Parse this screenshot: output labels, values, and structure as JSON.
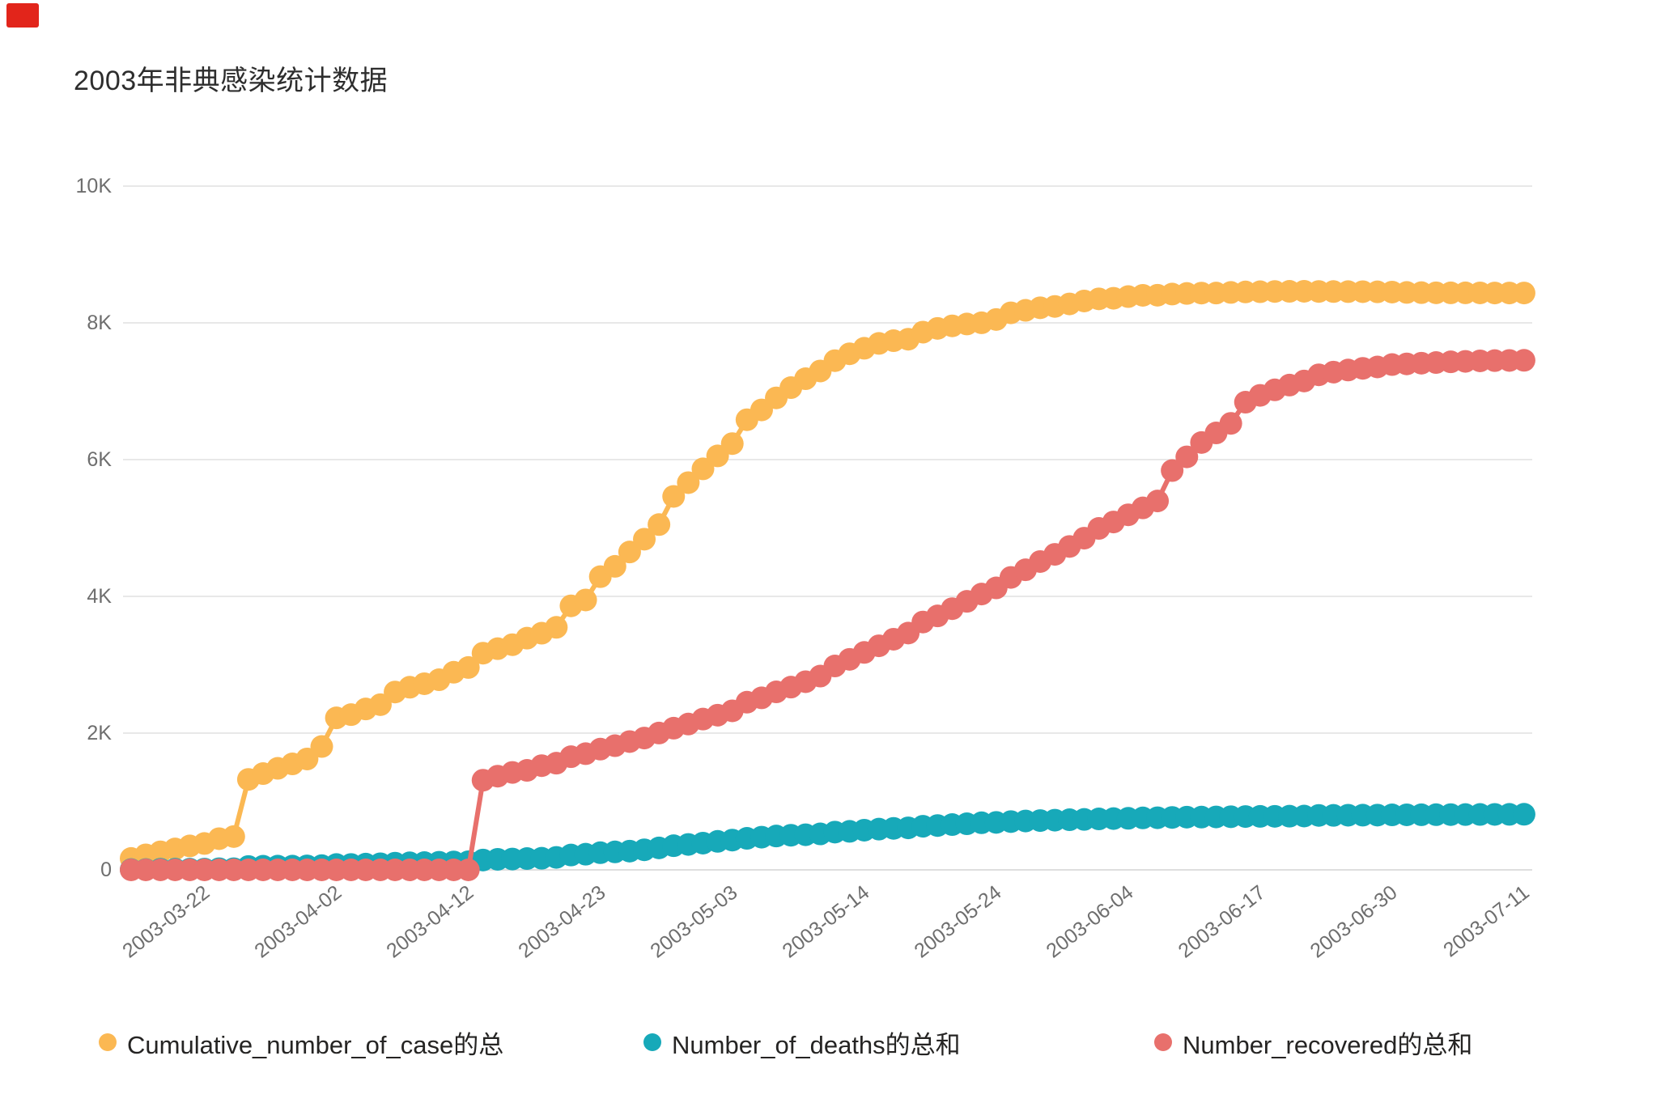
{
  "title": "2003年非典感染统计数据",
  "corner_mark_color": "#e2251b",
  "chart_data": {
    "type": "line",
    "title": "2003年非典感染统计数据",
    "xlabel": "",
    "ylabel": "",
    "ylim": [
      0,
      10000
    ],
    "grid": "horizontal",
    "legend_position": "bottom",
    "y_ticks": {
      "values": [
        0,
        2000,
        4000,
        6000,
        8000,
        10000
      ],
      "labels": [
        "0",
        "2K",
        "4K",
        "6K",
        "8K",
        "10K"
      ]
    },
    "x_tick_indices": [
      5,
      14,
      23,
      32,
      41,
      50,
      59,
      68,
      77,
      86,
      95
    ],
    "x_tick_labels": [
      "2003-03-22",
      "2003-04-02",
      "2003-04-12",
      "2003-04-23",
      "2003-05-03",
      "2003-05-14",
      "2003-05-24",
      "2003-06-04",
      "2003-06-17",
      "2003-06-30",
      "2003-07-11"
    ],
    "x": [
      "2003-03-17",
      "2003-03-18",
      "2003-03-19",
      "2003-03-20",
      "2003-03-21",
      "2003-03-22",
      "2003-03-24",
      "2003-03-25",
      "2003-03-26",
      "2003-03-27",
      "2003-03-28",
      "2003-03-29",
      "2003-03-31",
      "2003-04-01",
      "2003-04-02",
      "2003-04-03",
      "2003-04-04",
      "2003-04-05",
      "2003-04-07",
      "2003-04-08",
      "2003-04-09",
      "2003-04-10",
      "2003-04-11",
      "2003-04-12",
      "2003-04-14",
      "2003-04-15",
      "2003-04-16",
      "2003-04-17",
      "2003-04-18",
      "2003-04-19",
      "2003-04-21",
      "2003-04-22",
      "2003-04-23",
      "2003-04-24",
      "2003-04-25",
      "2003-04-26",
      "2003-04-28",
      "2003-04-29",
      "2003-04-30",
      "2003-05-01",
      "2003-05-02",
      "2003-05-03",
      "2003-05-05",
      "2003-05-06",
      "2003-05-07",
      "2003-05-08",
      "2003-05-09",
      "2003-05-10",
      "2003-05-12",
      "2003-05-13",
      "2003-05-14",
      "2003-05-15",
      "2003-05-16",
      "2003-05-17",
      "2003-05-19",
      "2003-05-20",
      "2003-05-21",
      "2003-05-22",
      "2003-05-23",
      "2003-05-24",
      "2003-05-26",
      "2003-05-27",
      "2003-05-28",
      "2003-05-29",
      "2003-05-30",
      "2003-05-31",
      "2003-06-02",
      "2003-06-03",
      "2003-06-04",
      "2003-06-05",
      "2003-06-06",
      "2003-06-09",
      "2003-06-10",
      "2003-06-11",
      "2003-06-12",
      "2003-06-13",
      "2003-06-16",
      "2003-06-17",
      "2003-06-18",
      "2003-06-19",
      "2003-06-20",
      "2003-06-23",
      "2003-06-24",
      "2003-06-25",
      "2003-06-26",
      "2003-06-27",
      "2003-06-30",
      "2003-07-01",
      "2003-07-02",
      "2003-07-03",
      "2003-07-04",
      "2003-07-07",
      "2003-07-08",
      "2003-07-09",
      "2003-07-10",
      "2003-07-11"
    ],
    "series": [
      {
        "label": "Cumulative_number_of_case的总",
        "color": "#FBB853",
        "values": [
          167,
          219,
          264,
          306,
          350,
          386,
          456,
          487,
          1323,
          1408,
          1485,
          1550,
          1622,
          1804,
          2223,
          2270,
          2353,
          2416,
          2601,
          2671,
          2722,
          2781,
          2890,
          2960,
          3169,
          3235,
          3293,
          3389,
          3461,
          3547,
          3861,
          3947,
          4288,
          4439,
          4649,
          4836,
          5050,
          5462,
          5663,
          5865,
          6054,
          6234,
          6583,
          6727,
          6903,
          7053,
          7183,
          7296,
          7447,
          7548,
          7628,
          7699,
          7739,
          7761,
          7864,
          7919,
          7956,
          7983,
          8001,
          8049,
          8147,
          8183,
          8221,
          8240,
          8277,
          8320,
          8351,
          8360,
          8384,
          8403,
          8404,
          8421,
          8430,
          8435,
          8436,
          8445,
          8452,
          8455,
          8459,
          8461,
          8462,
          8459,
          8458,
          8457,
          8456,
          8454,
          8450,
          8445,
          8442,
          8440,
          8439,
          8439,
          8438,
          8437,
          8437,
          8437
        ]
      },
      {
        "label": "Number_of_deaths的总和",
        "color": "#17A9B9",
        "values": [
          4,
          4,
          9,
          10,
          10,
          11,
          17,
          17,
          49,
          53,
          54,
          54,
          58,
          62,
          78,
          79,
          84,
          89,
          98,
          103,
          106,
          111,
          116,
          119,
          144,
          154,
          159,
          165,
          170,
          182,
          217,
          229,
          251,
          263,
          274,
          293,
          321,
          353,
          372,
          391,
          417,
          435,
          461,
          478,
          495,
          506,
          514,
          526,
          552,
          563,
          580,
          596,
          607,
          614,
          638,
          648,
          662,
          674,
          689,
          694,
          706,
          715,
          721,
          727,
          733,
          738,
          745,
          750,
          754,
          760,
          762,
          767,
          771,
          772,
          774,
          777,
          780,
          782,
          783,
          785,
          787,
          796,
          797,
          799,
          800,
          801,
          804,
          805,
          806,
          807,
          808,
          809,
          810,
          811,
          812,
          813
        ]
      },
      {
        "label": "Number_recovered的总和",
        "color": "#E8706C",
        "values": [
          0,
          0,
          0,
          0,
          0,
          0,
          0,
          0,
          0,
          0,
          0,
          0,
          0,
          0,
          0,
          0,
          0,
          0,
          0,
          0,
          0,
          0,
          0,
          0,
          1311,
          1370,
          1425,
          1455,
          1524,
          1560,
          1655,
          1699,
          1766,
          1816,
          1876,
          1928,
          2001,
          2072,
          2133,
          2205,
          2262,
          2326,
          2452,
          2516,
          2603,
          2673,
          2752,
          2834,
          2982,
          3079,
          3180,
          3277,
          3373,
          3463,
          3625,
          3714,
          3820,
          3927,
          4034,
          4124,
          4277,
          4389,
          4509,
          4614,
          4730,
          4851,
          4994,
          5088,
          5193,
          5294,
          5395,
          5840,
          6040,
          6250,
          6390,
          6530,
          6840,
          6940,
          7020,
          7090,
          7150,
          7240,
          7280,
          7310,
          7335,
          7355,
          7390,
          7400,
          7410,
          7420,
          7430,
          7437,
          7444,
          7448,
          7450,
          7452
        ]
      }
    ]
  }
}
